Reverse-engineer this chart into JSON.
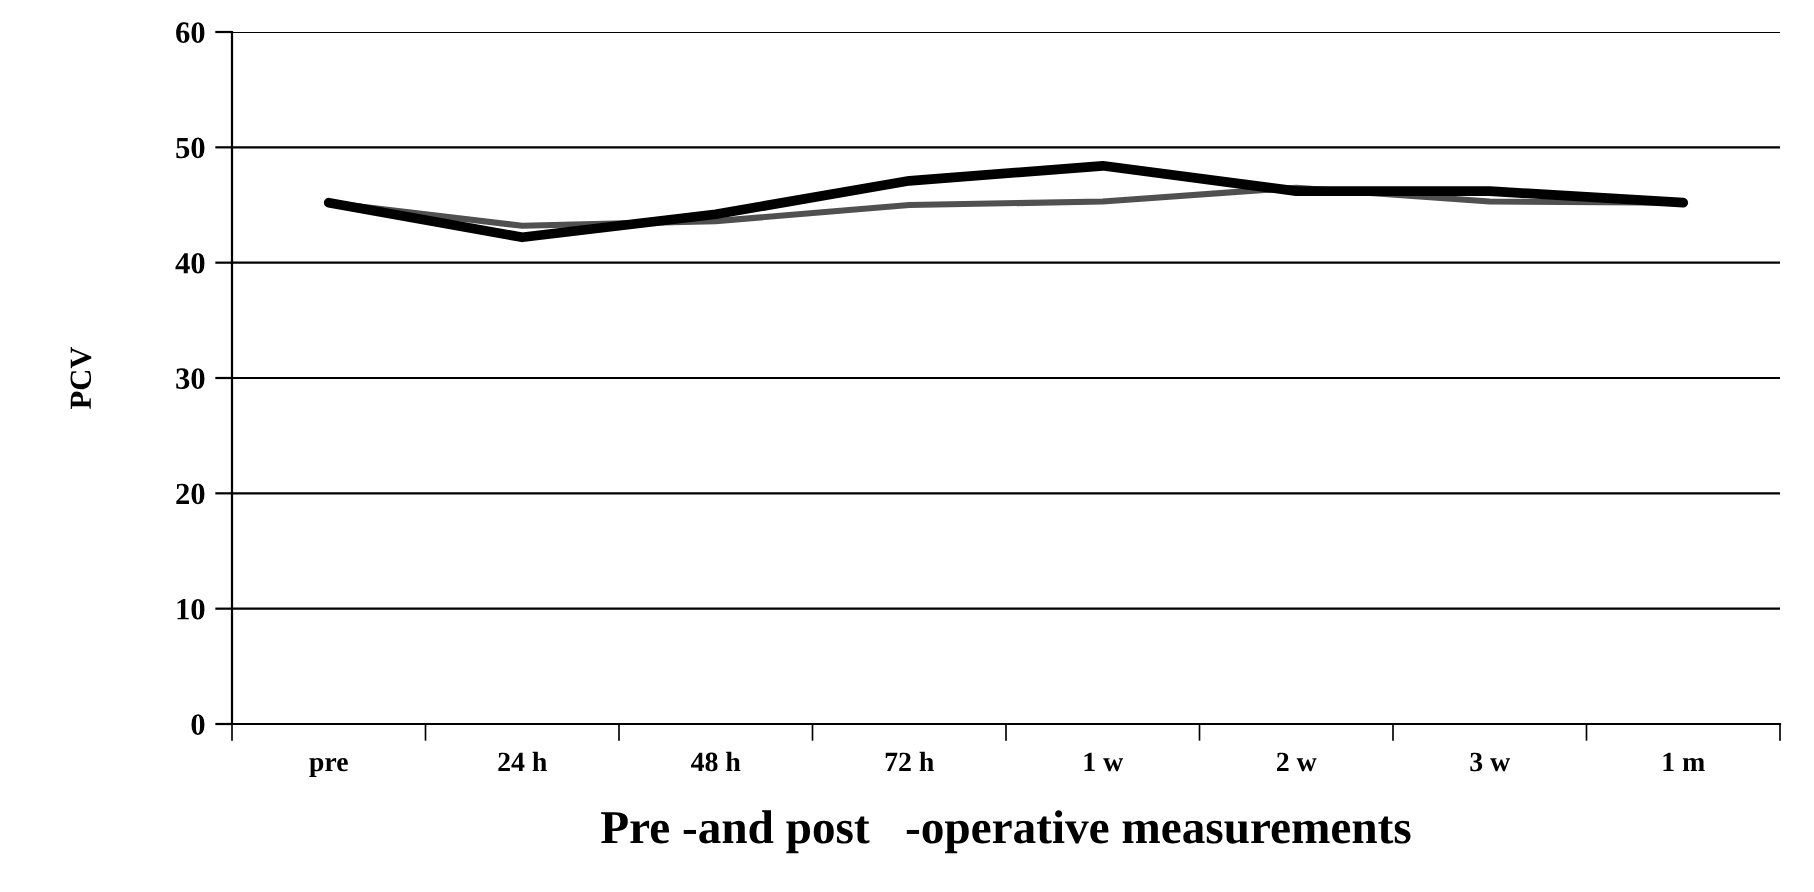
{
  "chart_data": {
    "type": "line",
    "xlabel": "Pre -and post   -operative measurements",
    "ylabel": "PCV",
    "categories": [
      "pre",
      "24 h",
      "48 h",
      "72 h",
      "1 w",
      "2 w",
      "3 w",
      "1 m"
    ],
    "series": [
      {
        "color": "#000000",
        "values": [
          45.2,
          42.2,
          44.2,
          47.1,
          48.4,
          46.2,
          46.2,
          45.2
        ]
      },
      {
        "color": "#505050",
        "values": [
          45.2,
          43.2,
          43.6,
          45.0,
          45.3,
          46.5,
          45.3,
          45.2
        ]
      }
    ],
    "ylim": [
      0,
      60
    ],
    "yticks": [
      0,
      10,
      20,
      30,
      40,
      50,
      60
    ],
    "grid": "y",
    "marker": "none",
    "line_style": "solid",
    "legend": false
  }
}
